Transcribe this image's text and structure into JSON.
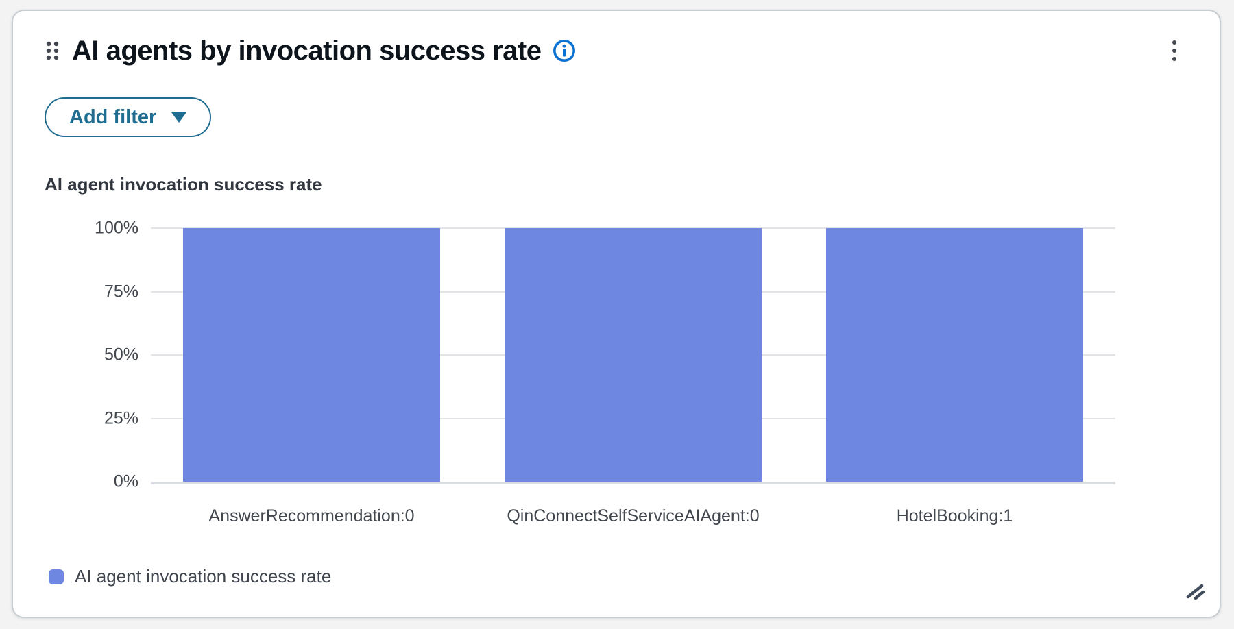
{
  "card": {
    "title": "AI agents by invocation success rate",
    "add_filter_label": "Add filter"
  },
  "icons": {
    "drag_handle": "drag-handle-dots",
    "info": "info-circle",
    "kebab": "vertical-ellipsis-menu",
    "caret": "caret-down",
    "resize": "resize-diagonal-grip"
  },
  "colors": {
    "page_bg": "#F3F3F4",
    "card_bg": "#FFFFFF",
    "accent_teal": "#1F6E91",
    "info_blue": "#0972D3",
    "bar_blue": "#6E87E0",
    "gridline": "#E2E4E8",
    "axis_baseline": "#D9DCE1"
  },
  "chart_data": {
    "type": "bar",
    "title": "AI agent invocation success rate",
    "categories": [
      "AnswerRecommendation:0",
      "QinConnectSelfServiceAIAgent:0",
      "HotelBooking:1"
    ],
    "series": [
      {
        "name": "AI agent invocation success rate",
        "values": [
          100,
          100,
          100
        ],
        "color": "#6E87E0"
      }
    ],
    "xlabel": "",
    "ylabel": "",
    "ylim": [
      0,
      100
    ],
    "yticks": [
      {
        "value": 100,
        "label": "100%"
      },
      {
        "value": 75,
        "label": "75%"
      },
      {
        "value": 50,
        "label": "50%"
      },
      {
        "value": 25,
        "label": "25%"
      },
      {
        "value": 0,
        "label": "0%"
      }
    ],
    "grid": true,
    "legend_position": "bottom",
    "value_format": "percent"
  }
}
